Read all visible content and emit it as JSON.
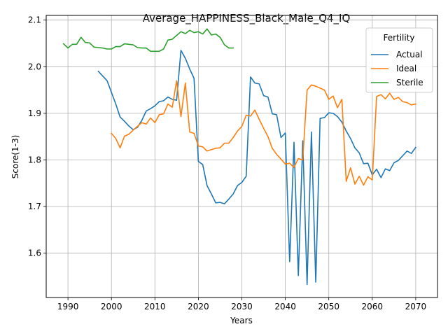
{
  "chart_data": {
    "type": "line",
    "title": "Average_HAPPINESS_Black_Male_Q4_IQ",
    "xlabel": "Years",
    "ylabel": "Score(1-3)",
    "xlim": [
      1985,
      2075
    ],
    "ylim": [
      1.505,
      2.11
    ],
    "xticks": [
      1990,
      2000,
      2010,
      2020,
      2030,
      2040,
      2050,
      2060,
      2070
    ],
    "yticks": [
      1.6,
      1.7,
      1.8,
      1.9,
      2.0,
      2.1
    ],
    "xtick_labels": [
      "1990",
      "2000",
      "2010",
      "2020",
      "2030",
      "2040",
      "2050",
      "2060",
      "2070"
    ],
    "ytick_labels": [
      "1.6",
      "1.7",
      "1.8",
      "1.9",
      "2.0",
      "2.1"
    ],
    "grid": true,
    "legend": {
      "title": "Fertility",
      "placement": "top-right"
    },
    "series": [
      {
        "name": "Actual",
        "color": "#1f77b4",
        "x": [
          1997,
          1998,
          1999,
          2000,
          2001,
          2002,
          2003,
          2004,
          2005,
          2006,
          2007,
          2008,
          2009,
          2010,
          2011,
          2012,
          2013,
          2014,
          2015,
          2016,
          2017,
          2018,
          2019,
          2020,
          2021,
          2022,
          2023,
          2024,
          2025,
          2026,
          2027,
          2028,
          2029,
          2030,
          2031,
          2032,
          2033,
          2034,
          2035,
          2036,
          2037,
          2038,
          2039,
          2040,
          2041,
          2042,
          2043,
          2044,
          2045,
          2046,
          2047,
          2048,
          2049,
          2050,
          2051,
          2052,
          2053,
          2054,
          2055,
          2056,
          2057,
          2058,
          2059,
          2060,
          2061,
          2062,
          2063,
          2064,
          2065,
          2066,
          2067,
          2068,
          2069,
          2070
        ],
        "values": [
          1.99,
          1.98,
          1.97,
          1.945,
          1.92,
          1.892,
          1.883,
          1.873,
          1.865,
          1.87,
          1.885,
          1.905,
          1.91,
          1.916,
          1.925,
          1.927,
          1.935,
          1.93,
          1.928,
          2.035,
          2.018,
          1.995,
          1.975,
          1.797,
          1.79,
          1.745,
          1.727,
          1.708,
          1.709,
          1.706,
          1.716,
          1.727,
          1.745,
          1.752,
          1.765,
          1.978,
          1.965,
          1.963,
          1.938,
          1.935,
          1.899,
          1.897,
          1.848,
          1.858,
          1.582,
          1.838,
          1.552,
          1.841,
          1.533,
          1.86,
          1.538,
          1.889,
          1.891,
          1.901,
          1.9,
          1.893,
          1.881,
          1.862,
          1.846,
          1.826,
          1.815,
          1.792,
          1.793,
          1.768,
          1.78,
          1.762,
          1.781,
          1.777,
          1.794,
          1.799,
          1.809,
          1.819,
          1.814,
          1.827
        ]
      },
      {
        "name": "Ideal",
        "color": "#ff7f0e",
        "x": [
          2000,
          2001,
          2002,
          2003,
          2004,
          2005,
          2006,
          2007,
          2008,
          2009,
          2010,
          2011,
          2012,
          2013,
          2014,
          2015,
          2016,
          2017,
          2018,
          2019,
          2020,
          2021,
          2022,
          2023,
          2024,
          2025,
          2026,
          2027,
          2028,
          2029,
          2030,
          2031,
          2032,
          2033,
          2034,
          2035,
          2036,
          2037,
          2038,
          2039,
          2040,
          2041,
          2042,
          2043,
          2044,
          2045,
          2046,
          2047,
          2048,
          2049,
          2050,
          2051,
          2052,
          2053,
          2054,
          2055,
          2056,
          2057,
          2058,
          2059,
          2060,
          2061,
          2062,
          2063,
          2064,
          2065,
          2066,
          2067,
          2068,
          2069,
          2070
        ],
        "values": [
          1.857,
          1.846,
          1.826,
          1.851,
          1.855,
          1.864,
          1.872,
          1.88,
          1.877,
          1.89,
          1.88,
          1.897,
          1.899,
          1.92,
          1.913,
          1.97,
          1.893,
          1.965,
          1.86,
          1.857,
          1.83,
          1.828,
          1.819,
          1.822,
          1.825,
          1.826,
          1.836,
          1.836,
          1.848,
          1.862,
          1.872,
          1.896,
          1.894,
          1.907,
          1.887,
          1.868,
          1.85,
          1.825,
          1.812,
          1.802,
          1.791,
          1.793,
          1.784,
          1.803,
          1.8,
          1.95,
          1.961,
          1.958,
          1.954,
          1.95,
          1.93,
          1.937,
          1.912,
          1.93,
          1.754,
          1.783,
          1.748,
          1.765,
          1.746,
          1.764,
          1.757,
          1.936,
          1.94,
          1.931,
          1.943,
          1.93,
          1.934,
          1.925,
          1.923,
          1.918,
          1.92
        ]
      },
      {
        "name": "Sterile",
        "color": "#2ca02c",
        "x": [
          1989,
          1990,
          1991,
          1992,
          1993,
          1994,
          1995,
          1996,
          1997,
          1998,
          1999,
          2000,
          2001,
          2002,
          2003,
          2004,
          2005,
          2006,
          2007,
          2008,
          2009,
          2010,
          2011,
          2012,
          2013,
          2014,
          2015,
          2016,
          2017,
          2018,
          2019,
          2020,
          2021,
          2022,
          2023,
          2024,
          2025,
          2026,
          2027,
          2028
        ],
        "values": [
          2.049,
          2.04,
          2.048,
          2.048,
          2.063,
          2.052,
          2.051,
          2.042,
          2.041,
          2.04,
          2.038,
          2.038,
          2.043,
          2.043,
          2.049,
          2.048,
          2.047,
          2.041,
          2.04,
          2.04,
          2.033,
          2.033,
          2.033,
          2.038,
          2.057,
          2.059,
          2.067,
          2.075,
          2.071,
          2.078,
          2.073,
          2.075,
          2.07,
          2.081,
          2.068,
          2.07,
          2.063,
          2.047,
          2.04,
          2.04
        ]
      }
    ]
  }
}
